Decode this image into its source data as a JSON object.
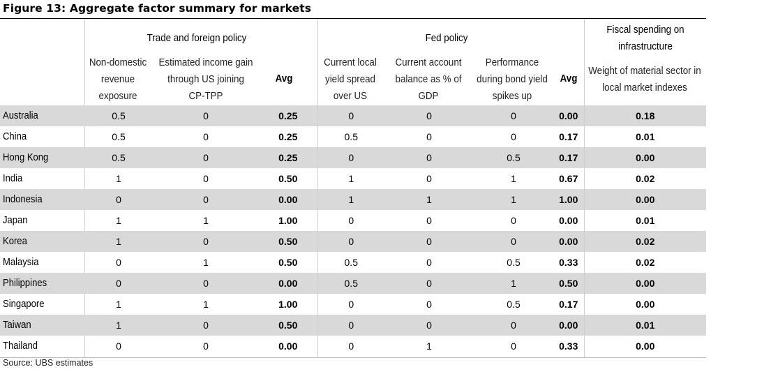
{
  "title": "Figure 13: Aggregate factor summary for markets",
  "groups": {
    "trade": "Trade and foreign policy",
    "fed": "Fed policy",
    "fiscal_l1": "Fiscal spending on",
    "fiscal_l2": "infrastructure"
  },
  "columns": {
    "nondomestic": [
      "Non-domestic",
      "revenue",
      "exposure"
    ],
    "income_gain": [
      "Estimated income gain",
      "through US joining",
      "CP-TPP"
    ],
    "avg": "Avg",
    "yield_spread": [
      "Current local",
      "yield spread",
      "over US"
    ],
    "current_account": [
      "Current account",
      "balance as % of",
      "GDP"
    ],
    "performance": [
      "Performance",
      "during bond yield",
      "spikes up"
    ],
    "material_weight": [
      "Weight of material sector in",
      "local market indexes"
    ]
  },
  "rows": [
    {
      "market": "Australia",
      "v": [
        "0.5",
        "0",
        "0.25",
        "0",
        "0",
        "0",
        "0.00",
        "0.18"
      ]
    },
    {
      "market": "China",
      "v": [
        "0.5",
        "0",
        "0.25",
        "0.5",
        "0",
        "0",
        "0.17",
        "0.01"
      ]
    },
    {
      "market": "Hong Kong",
      "v": [
        "0.5",
        "0",
        "0.25",
        "0",
        "0",
        "0.5",
        "0.17",
        "0.00"
      ]
    },
    {
      "market": "India",
      "v": [
        "1",
        "0",
        "0.50",
        "1",
        "0",
        "1",
        "0.67",
        "0.02"
      ]
    },
    {
      "market": "Indonesia",
      "v": [
        "0",
        "0",
        "0.00",
        "1",
        "1",
        "1",
        "1.00",
        "0.00"
      ]
    },
    {
      "market": "Japan",
      "v": [
        "1",
        "1",
        "1.00",
        "0",
        "0",
        "0",
        "0.00",
        "0.01"
      ]
    },
    {
      "market": "Korea",
      "v": [
        "1",
        "0",
        "0.50",
        "0",
        "0",
        "0",
        "0.00",
        "0.02"
      ]
    },
    {
      "market": "Malaysia",
      "v": [
        "0",
        "1",
        "0.50",
        "0.5",
        "0",
        "0.5",
        "0.33",
        "0.02"
      ]
    },
    {
      "market": "Philippines",
      "v": [
        "0",
        "0",
        "0.00",
        "0.5",
        "0",
        "1",
        "0.50",
        "0.00"
      ]
    },
    {
      "market": "Singapore",
      "v": [
        "1",
        "1",
        "1.00",
        "0",
        "0",
        "0.5",
        "0.17",
        "0.00"
      ]
    },
    {
      "market": "Taiwan",
      "v": [
        "1",
        "0",
        "0.50",
        "0",
        "0",
        "0",
        "0.00",
        "0.01"
      ]
    },
    {
      "market": "Thailand",
      "v": [
        "0",
        "0",
        "0.00",
        "0",
        "1",
        "0",
        "0.33",
        "0.00"
      ]
    }
  ],
  "source": "Source:  UBS estimates"
}
